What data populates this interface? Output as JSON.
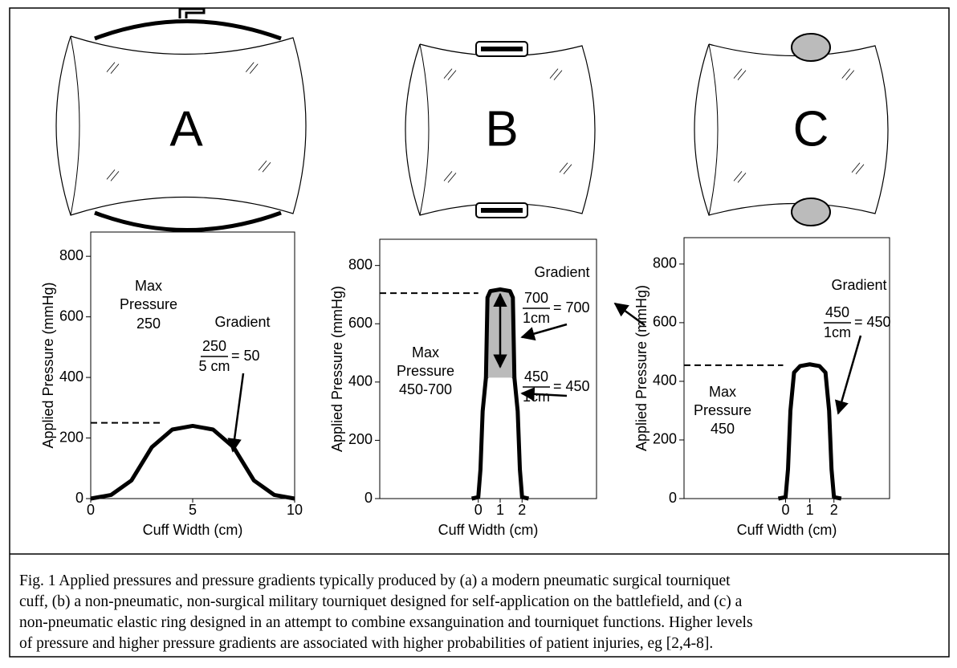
{
  "illustrations": [
    {
      "label": "A"
    },
    {
      "label": "B"
    },
    {
      "label": "C"
    }
  ],
  "chart_data": [
    {
      "type": "line",
      "x_label": "Cuff Width (cm)",
      "y_label": "Applied Pressure (mmHg)",
      "xlim": [
        0,
        10
      ],
      "ylim": [
        0,
        880
      ],
      "xticks": [
        0,
        5,
        10
      ],
      "yticks": [
        0,
        200,
        400,
        600,
        800
      ],
      "series": [
        {
          "color": "#000000",
          "x": [
            0,
            1,
            2,
            3,
            4,
            5,
            6,
            7,
            8,
            9,
            10
          ],
          "values": [
            0,
            12,
            60,
            170,
            228,
            240,
            228,
            170,
            60,
            12,
            0
          ]
        }
      ],
      "max_line": {
        "y": 250,
        "x": [
          0,
          3.4
        ]
      },
      "max_label": [
        "Max",
        "Pressure",
        "250"
      ],
      "gradient_label": "Gradient",
      "fractions": [
        {
          "num": "250",
          "den": "5 cm",
          "result": "= 50"
        }
      ]
    },
    {
      "type": "line",
      "x_label": "Cuff Width (cm)",
      "y_label": "Applied Pressure (mmHg)",
      "xlim": [
        -4.5,
        5.4
      ],
      "ylim": [
        0,
        890
      ],
      "xticks": [
        0,
        1,
        2
      ],
      "yticks": [
        0,
        200,
        400,
        600,
        800
      ],
      "series": [
        {
          "color": "#000000",
          "x": [
            -0.3,
            0,
            0.1,
            0.2,
            0.35,
            0.55,
            1,
            1.45,
            1.65,
            1.8,
            1.9,
            2,
            2.3
          ],
          "values": [
            0,
            5,
            100,
            300,
            415,
            432,
            435,
            432,
            415,
            300,
            100,
            5,
            0
          ]
        },
        {
          "color": "#000000",
          "x": [
            0.35,
            0.42,
            0.55,
            1,
            1.45,
            1.58,
            1.65
          ],
          "values": [
            415,
            690,
            712,
            718,
            712,
            690,
            415
          ]
        }
      ],
      "max_line": {
        "y": 705,
        "x": [
          -4.5,
          0
        ]
      },
      "max_label": [
        "Max",
        "Pressure",
        "450-700"
      ],
      "gradient_label": "Gradient",
      "fractions": [
        {
          "num": "700",
          "den": "1cm",
          "result": "= 700"
        },
        {
          "num": "450",
          "den": "1cm",
          "result": "= 450"
        }
      ]
    },
    {
      "type": "line",
      "x_label": "Cuff Width (cm)",
      "y_label": "Applied Pressure (mmHg)",
      "xlim": [
        -4.2,
        4.3
      ],
      "ylim": [
        0,
        890
      ],
      "xticks": [
        0,
        1,
        2
      ],
      "yticks": [
        0,
        200,
        400,
        600,
        800
      ],
      "series": [
        {
          "color": "#000000",
          "x": [
            -0.3,
            0,
            0.1,
            0.2,
            0.35,
            0.6,
            1,
            1.4,
            1.65,
            1.8,
            1.9,
            2,
            2.3
          ],
          "values": [
            0,
            5,
            100,
            300,
            430,
            452,
            458,
            452,
            430,
            300,
            100,
            5,
            0
          ]
        }
      ],
      "max_line": {
        "y": 455,
        "x": [
          -4.2,
          -0.1
        ]
      },
      "max_label": [
        "Max",
        "Pressure",
        "450"
      ],
      "gradient_label": "Gradient",
      "fractions": [
        {
          "num": "450",
          "den": "1cm",
          "result": "= 450"
        }
      ]
    }
  ],
  "caption": [
    "Fig. 1    Applied pressures and pressure gradients typically produced by (a) a modern pneumatic surgical tourniquet",
    "cuff, (b) a non-pneumatic, non-surgical military tourniquet designed for self-application on the battlefield, and (c) a",
    "non-pneumatic elastic ring designed in an attempt to combine exsanguination and tourniquet functions. Higher levels",
    "of pressure and higher pressure gradients are associated with higher probabilities of patient injuries, eg [2,4-8]."
  ]
}
